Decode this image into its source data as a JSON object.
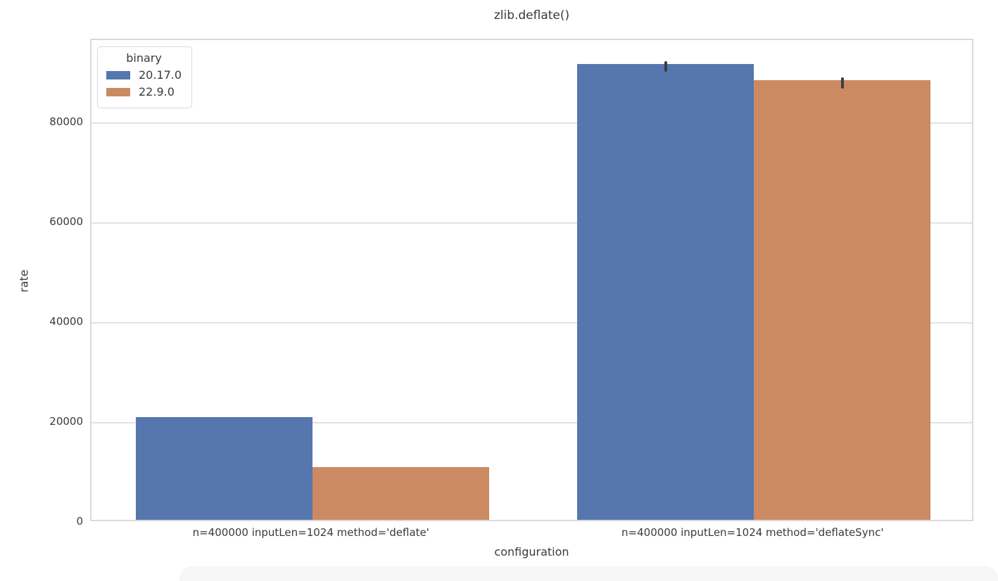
{
  "chart_data": {
    "type": "bar",
    "title": "zlib.deflate()",
    "xlabel": "configuration",
    "ylabel": "rate",
    "categories": [
      "n=400000 inputLen=1024 method='deflate'",
      "n=400000 inputLen=1024 method='deflateSync'"
    ],
    "series": [
      {
        "name": "20.17.0",
        "color": "#5577ae",
        "values": [
          20500,
          91300
        ],
        "ci": [
          [
            null,
            null
          ],
          [
            90200,
            92400
          ]
        ]
      },
      {
        "name": "22.9.0",
        "color": "#cc8a62",
        "values": [
          10600,
          88000
        ],
        "ci": [
          [
            null,
            null
          ],
          [
            86900,
            89100
          ]
        ]
      }
    ],
    "ylim": [
      0,
      96600
    ],
    "yticks": [
      0,
      20000,
      40000,
      60000,
      80000
    ],
    "grid": "horizontal",
    "legend": {
      "title": "binary",
      "position": "upper left"
    },
    "error_bar_color": "#3d3d3d",
    "gridline_color": "#e2e2e2"
  }
}
